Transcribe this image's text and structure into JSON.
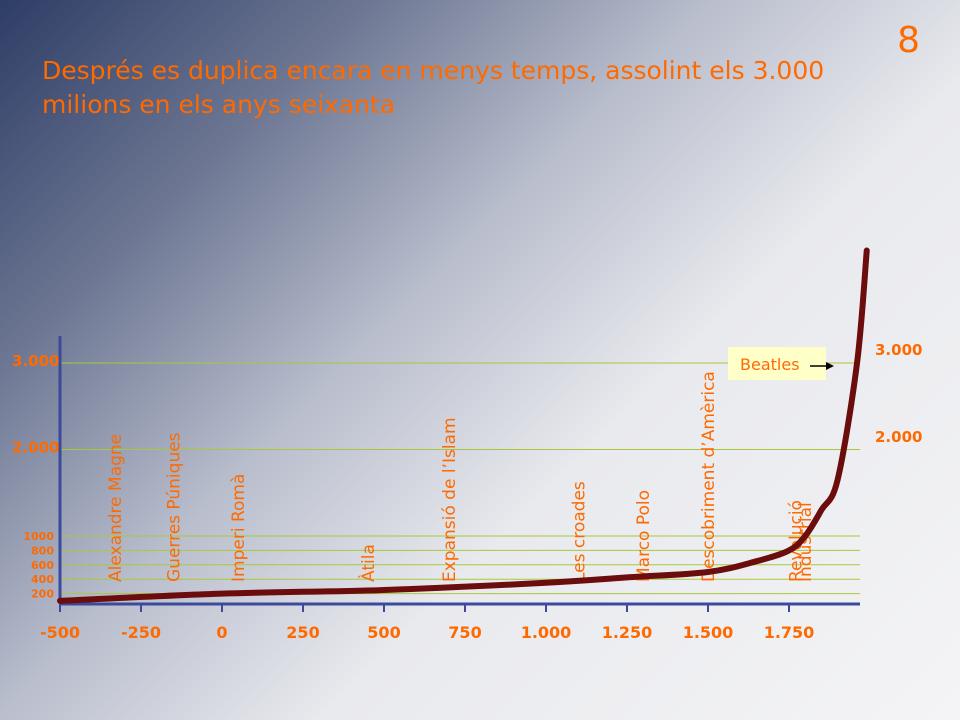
{
  "slide": {
    "page_number": "8",
    "title": "Després es duplica encara en menys temps, assolint els 3.000 milions en els anys seixanta"
  },
  "colors": {
    "accent": "#ff6a00",
    "curve": "#6b0d0d",
    "axis": "#3b4a9a",
    "gridline": "#a8c83c",
    "annotation_bg": "#ffffc8"
  },
  "chart_data": {
    "type": "line",
    "x_ticks": [
      "-500",
      "-250",
      "0",
      "250",
      "500",
      "750",
      "1.000",
      "1.250",
      "1.500",
      "1.750"
    ],
    "x_tick_values": [
      -500,
      -250,
      0,
      250,
      500,
      750,
      1000,
      1250,
      1500,
      1750
    ],
    "y_ticks_left_large": [
      {
        "label": "3.000",
        "value": 3000
      },
      {
        "label": "2.000",
        "value": 2000
      }
    ],
    "y_ticks_left_small": [
      {
        "label": "1000",
        "value": 1000
      },
      {
        "label": "800",
        "value": 800
      },
      {
        "label": "600",
        "value": 600
      },
      {
        "label": "400",
        "value": 400
      },
      {
        "label": "200",
        "value": 200
      }
    ],
    "y_ticks_right": [
      {
        "label": "3.000",
        "value": 3000
      },
      {
        "label": "2.000",
        "value": 2000
      }
    ],
    "series": [
      {
        "points": [
          {
            "x": -500,
            "y": 100
          },
          {
            "x": 0,
            "y": 200
          },
          {
            "x": 500,
            "y": 250
          },
          {
            "x": 1000,
            "y": 350
          },
          {
            "x": 1250,
            "y": 425
          },
          {
            "x": 1500,
            "y": 500
          },
          {
            "x": 1650,
            "y": 650
          },
          {
            "x": 1750,
            "y": 800
          },
          {
            "x": 1800,
            "y": 1000
          },
          {
            "x": 1850,
            "y": 1300
          },
          {
            "x": 1900,
            "y": 1650
          },
          {
            "x": 1960,
            "y": 3000
          },
          {
            "x": 1990,
            "y": 4300
          }
        ]
      }
    ],
    "events": [
      {
        "label": "Alexandre Magne",
        "x": -330
      },
      {
        "label": "Guerres Púniques",
        "x": -150
      },
      {
        "label": "Imperi Romà",
        "x": 50
      },
      {
        "label": "Àtila",
        "x": 450
      },
      {
        "label": "Expansió de l’Islam",
        "x": 700
      },
      {
        "label": "Les croades",
        "x": 1100
      },
      {
        "label": "Marco Polo",
        "x": 1300
      },
      {
        "label": "Descobriment d’Amèrica",
        "x": 1500
      },
      {
        "label": "Revolució",
        "x": 1770
      },
      {
        "label": "Industrial",
        "x": 1800
      }
    ],
    "annotation": {
      "label": "Beatles",
      "x": 1960,
      "y": 3000
    },
    "ylim": [
      0,
      4300
    ],
    "xlim": [
      -550,
      2000
    ],
    "grid": true
  }
}
